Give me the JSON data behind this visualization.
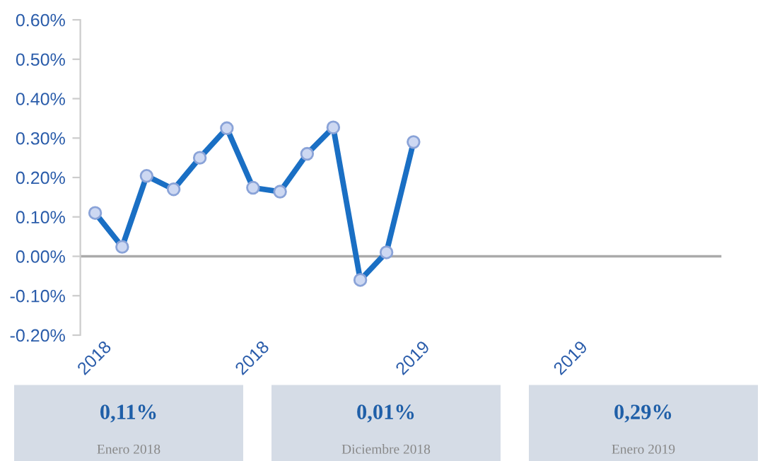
{
  "chart_data": {
    "type": "line",
    "x": [
      "2018-01",
      "2018-02",
      "2018-03",
      "2018-04",
      "2018-05",
      "2018-06",
      "2018-07",
      "2018-08",
      "2018-09",
      "2018-10",
      "2018-11",
      "2018-12",
      "2019-01"
    ],
    "series": [
      {
        "color": "#1a6fc4",
        "values": [
          0.11,
          0.024,
          0.204,
          0.17,
          0.25,
          0.325,
          0.174,
          0.164,
          0.26,
          0.327,
          -0.06,
          0.01,
          0.29
        ]
      }
    ],
    "marker": "circle",
    "line_style": "solid",
    "grid": false,
    "xlim": [
      "2017-12-15",
      "2019-12-20"
    ],
    "xticks": [
      {
        "value": "2018-01",
        "label": "2018"
      },
      {
        "value": "2018-07",
        "label": "2018"
      },
      {
        "value": "2019-01",
        "label": "2019"
      },
      {
        "value": "2019-07",
        "label": "2019"
      }
    ],
    "ylim": [
      -0.2,
      0.6
    ],
    "yticks": [
      {
        "value": -0.2,
        "label": "-0.20%"
      },
      {
        "value": -0.1,
        "label": "-0.10%"
      },
      {
        "value": 0,
        "label": "0.00%"
      },
      {
        "value": 0.1,
        "label": "0.10%"
      },
      {
        "value": 0.2,
        "label": "0.20%"
      },
      {
        "value": 0.3,
        "label": "0.30%"
      },
      {
        "value": 0.4,
        "label": "0.40%"
      },
      {
        "value": 0.5,
        "label": "0.50%"
      },
      {
        "value": 0.6,
        "label": "0.60%"
      }
    ],
    "ref_lines": [
      {
        "axis": "y",
        "value": 0,
        "color": "#aaaaaa"
      }
    ],
    "annotations": [
      "0,11%",
      "Enero 2018",
      "0,01%",
      "Diciembre 2018",
      "0,29%",
      "Enero 2019"
    ]
  }
}
